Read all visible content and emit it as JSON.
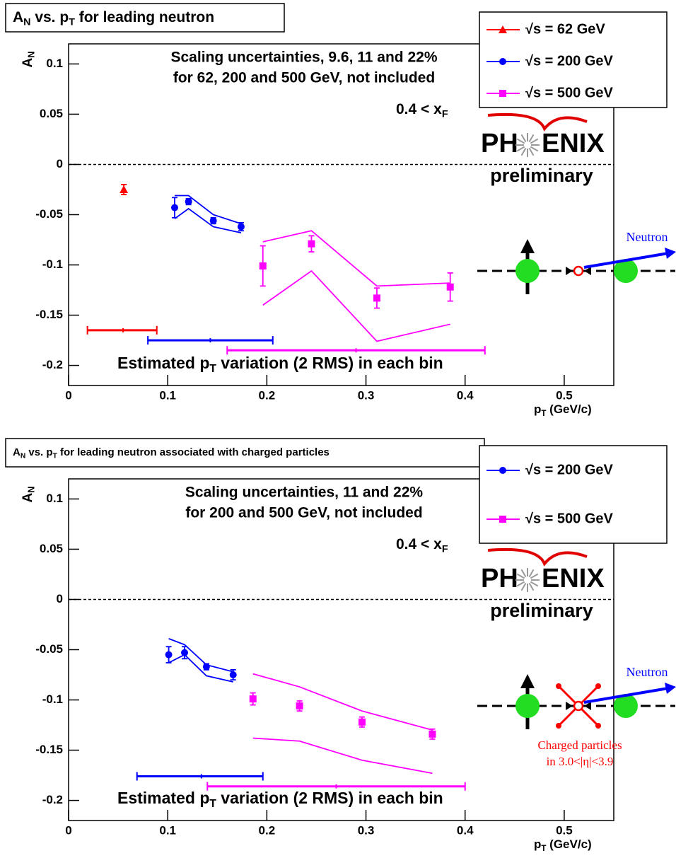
{
  "chart_data": [
    {
      "type": "scatter",
      "title": [
        "A",
        "N",
        " vs. p",
        "T",
        " for leading neutron"
      ],
      "ylabel": [
        "A",
        "N"
      ],
      "xlabel": [
        "p",
        "T",
        " (GeV/c)"
      ],
      "annotations": [
        "Scaling uncertainties, 9.6, 11 and 22%",
        "for 62, 200 and 500 GeV, not included"
      ],
      "xf_label": [
        "0.4 < x",
        "F"
      ],
      "spread_label": [
        "Estimated p",
        "T",
        " variation (2 RMS) in each bin"
      ],
      "logo": {
        "left": "PH",
        "right": "ENIX",
        "status": "preliminary"
      },
      "diagram_labels": [
        "Neutron"
      ],
      "xlim": [
        0,
        0.55
      ],
      "ylim": [
        -0.22,
        0.12
      ],
      "xticks": [
        0,
        0.1,
        0.2,
        0.3,
        0.4,
        0.5
      ],
      "yticks": [
        -0.2,
        -0.15,
        -0.1,
        -0.05,
        0,
        0.05,
        0.1
      ],
      "reference_line": 0,
      "series": [
        {
          "name": "√s = 62 GeV",
          "color": "#ff0000",
          "marker": "triangle",
          "x": [
            0.0557
          ],
          "values": [
            -0.025
          ],
          "yerr": [
            0.005
          ],
          "band_upper": [],
          "band_lower": [],
          "spread": {
            "y": -0.165,
            "low": 0.019,
            "center": 0.055,
            "high": 0.089
          }
        },
        {
          "name": "√s = 200 GeV",
          "color": "#0000ff",
          "marker": "circle",
          "x": [
            0.107,
            0.121,
            0.146,
            0.174
          ],
          "values": [
            -0.043,
            -0.037,
            -0.056,
            -0.062
          ],
          "yerr": [
            0.01,
            0.003,
            0.003,
            0.004
          ],
          "band_upper": [
            -0.031,
            -0.031,
            -0.05,
            -0.059
          ],
          "band_lower": [
            -0.054,
            -0.044,
            -0.062,
            -0.068
          ],
          "spread": {
            "y": -0.175,
            "low": 0.08,
            "center": 0.143,
            "high": 0.206
          }
        },
        {
          "name": "√s = 500 GeV",
          "color": "#ff00ff",
          "marker": "square",
          "x": [
            0.196,
            0.245,
            0.311,
            0.385
          ],
          "values": [
            -0.101,
            -0.079,
            -0.133,
            -0.122
          ],
          "yerr": [
            0.02,
            0.008,
            0.01,
            0.014
          ],
          "band_upper": [
            -0.077,
            -0.066,
            -0.121,
            -0.118
          ],
          "band_lower": [
            -0.14,
            -0.106,
            -0.176,
            -0.159
          ],
          "spread": {
            "y": -0.185,
            "low": 0.16,
            "center": 0.29,
            "high": 0.42
          }
        }
      ]
    },
    {
      "type": "scatter",
      "title": [
        "A",
        "N",
        " vs. p",
        "T",
        " for leading neutron associated with charged particles"
      ],
      "ylabel": [
        "A",
        "N"
      ],
      "xlabel": [
        "p",
        "T",
        " (GeV/c)"
      ],
      "annotations": [
        "Scaling uncertainties, 11 and 22%",
        "for 200 and 500 GeV, not included"
      ],
      "xf_label": [
        "0.4 < x",
        "F"
      ],
      "spread_label": [
        "Estimated p",
        "T",
        " variation (2 RMS) in each bin"
      ],
      "logo": {
        "left": "PH",
        "right": "ENIX",
        "status": "preliminary"
      },
      "diagram_labels": [
        "Neutron",
        "Charged particles",
        "in 3.0<|η|<3.9"
      ],
      "xlim": [
        0,
        0.55
      ],
      "ylim": [
        -0.22,
        0.12
      ],
      "xticks": [
        0,
        0.1,
        0.2,
        0.3,
        0.4,
        0.5
      ],
      "yticks": [
        -0.2,
        -0.15,
        -0.1,
        -0.05,
        0,
        0.05,
        0.1
      ],
      "reference_line": 0,
      "series": [
        {
          "name": "√s = 200 GeV",
          "color": "#0000ff",
          "marker": "circle",
          "x": [
            0.101,
            0.117,
            0.139,
            0.166
          ],
          "values": [
            -0.055,
            -0.053,
            -0.067,
            -0.075
          ],
          "yerr": [
            0.008,
            0.006,
            0.003,
            0.005
          ],
          "band_upper": [
            -0.039,
            -0.045,
            -0.065,
            -0.072
          ],
          "band_lower": [
            -0.063,
            -0.055,
            -0.076,
            -0.082
          ],
          "spread": {
            "y": -0.176,
            "low": 0.069,
            "center": 0.134,
            "high": 0.196
          }
        },
        {
          "name": "√s = 500 GeV",
          "color": "#ff00ff",
          "marker": "square",
          "x": [
            0.186,
            0.233,
            0.296,
            0.367
          ],
          "values": [
            -0.099,
            -0.106,
            -0.122,
            -0.134
          ],
          "yerr": [
            0.006,
            0.005,
            0.005,
            0.005
          ],
          "band_upper": [
            -0.074,
            -0.087,
            -0.111,
            -0.13
          ],
          "band_lower": [
            -0.138,
            -0.141,
            -0.16,
            -0.173
          ],
          "spread": {
            "y": -0.186,
            "low": 0.14,
            "center": 0.27,
            "high": 0.4
          }
        }
      ]
    }
  ]
}
